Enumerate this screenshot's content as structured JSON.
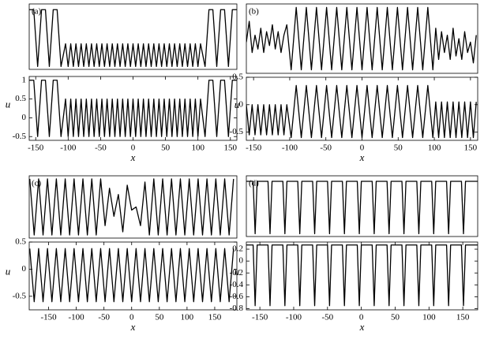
{
  "chart_data": [
    {
      "type": "line",
      "label": "(a)",
      "color": "#000000",
      "x": [
        -160,
        -153,
        -147,
        -141,
        -135,
        -129,
        -123,
        -117,
        -111,
        -104,
        -100,
        -96,
        -92,
        -88,
        -84,
        -80,
        -76,
        -72,
        -68,
        -64,
        -60,
        -56,
        -52,
        -48,
        -44,
        -40,
        -36,
        -32,
        -28,
        -24,
        -20,
        -16,
        -12,
        -8,
        -4,
        0,
        4,
        8,
        12,
        16,
        20,
        24,
        28,
        32,
        36,
        40,
        44,
        48,
        52,
        56,
        60,
        64,
        68,
        72,
        76,
        80,
        84,
        88,
        92,
        96,
        100,
        104,
        111,
        117,
        123,
        129,
        135,
        141,
        147,
        153,
        160
      ],
      "values": [
        1,
        1,
        0,
        1,
        1,
        0,
        1,
        1,
        0,
        0.4,
        0,
        0.4,
        0,
        0.4,
        0,
        0.4,
        0,
        0.4,
        0,
        0.4,
        0,
        0.4,
        0,
        0.4,
        0,
        0.4,
        0,
        0.4,
        0,
        0.4,
        0,
        0.4,
        0,
        0.4,
        0,
        0.4,
        0,
        0.4,
        0,
        0.4,
        0,
        0.4,
        0,
        0.4,
        0,
        0.4,
        0,
        0.4,
        0,
        0.4,
        0,
        0.4,
        0,
        0.4,
        0,
        0.4,
        0,
        0.4,
        0,
        0.4,
        0,
        0.4,
        0,
        1,
        1,
        0,
        1,
        1,
        0,
        1,
        1
      ],
      "xlim": [
        -160,
        160
      ],
      "ylim": [
        -0.05,
        1.1
      ]
    },
    {
      "type": "line",
      "color": "#000000",
      "xlabel": "x",
      "ylabel": "u",
      "x": [
        -160,
        -153,
        -147,
        -141,
        -135,
        -129,
        -123,
        -117,
        -111,
        -104,
        -100,
        -96,
        -92,
        -88,
        -84,
        -80,
        -76,
        -72,
        -68,
        -64,
        -60,
        -56,
        -52,
        -48,
        -44,
        -40,
        -36,
        -32,
        -28,
        -24,
        -20,
        -16,
        -12,
        -8,
        -4,
        0,
        4,
        8,
        12,
        16,
        20,
        24,
        28,
        32,
        36,
        40,
        44,
        48,
        52,
        56,
        60,
        64,
        68,
        72,
        76,
        80,
        84,
        88,
        92,
        96,
        100,
        104,
        111,
        117,
        123,
        129,
        135,
        141,
        147,
        153,
        160
      ],
      "values": [
        1,
        1,
        -0.5,
        1,
        1,
        -0.5,
        1,
        1,
        -0.5,
        0.5,
        -0.5,
        0.5,
        -0.5,
        0.5,
        -0.5,
        0.5,
        -0.5,
        0.5,
        -0.5,
        0.5,
        -0.5,
        0.5,
        -0.5,
        0.5,
        -0.5,
        0.5,
        -0.5,
        0.5,
        -0.5,
        0.5,
        -0.5,
        0.5,
        -0.5,
        0.5,
        -0.5,
        0.5,
        -0.5,
        0.5,
        -0.5,
        0.5,
        -0.5,
        0.5,
        -0.5,
        0.5,
        -0.5,
        0.5,
        -0.5,
        0.5,
        -0.5,
        0.5,
        -0.5,
        0.5,
        -0.5,
        0.5,
        -0.5,
        0.5,
        -0.5,
        0.5,
        -0.5,
        0.5,
        -0.5,
        0.5,
        -0.5,
        1,
        1,
        -0.5,
        1,
        1,
        -0.5,
        1,
        1
      ],
      "xlim": [
        -160,
        160
      ],
      "ylim": [
        -0.6,
        1.1
      ],
      "xticks": [
        -150,
        -100,
        -50,
        0,
        50,
        100,
        150
      ],
      "yticks": [
        -0.5,
        0,
        0.5,
        1
      ]
    },
    {
      "type": "line",
      "label": "(b)",
      "color": "#000000",
      "x": [
        -160,
        -156,
        -152,
        -148,
        -144,
        -140,
        -136,
        -132,
        -128,
        -124,
        -120,
        -116,
        -112,
        -108,
        -104,
        -98,
        -91,
        -84,
        -77,
        -70,
        -63,
        -56,
        -49,
        -42,
        -35,
        -28,
        -21,
        -14,
        -7,
        0,
        7,
        14,
        21,
        28,
        35,
        42,
        49,
        56,
        63,
        70,
        77,
        84,
        91,
        98,
        102,
        106,
        110,
        114,
        118,
        122,
        126,
        130,
        134,
        138,
        142,
        146,
        150,
        154,
        158
      ],
      "values": [
        0.45,
        0.75,
        0.3,
        0.55,
        0.35,
        0.65,
        0.3,
        0.6,
        0.4,
        0.7,
        0.35,
        0.6,
        0.3,
        0.55,
        0.7,
        0.05,
        0.95,
        0.05,
        0.95,
        0.05,
        0.95,
        0.05,
        0.95,
        0.05,
        0.95,
        0.05,
        0.95,
        0.05,
        0.95,
        0.05,
        0.95,
        0.05,
        0.95,
        0.05,
        0.95,
        0.05,
        0.95,
        0.05,
        0.95,
        0.05,
        0.95,
        0.05,
        0.95,
        0.05,
        0.65,
        0.2,
        0.6,
        0.3,
        0.55,
        0.2,
        0.65,
        0.25,
        0.5,
        0.2,
        0.6,
        0.3,
        0.45,
        0.15,
        0.55
      ],
      "xlim": [
        -160,
        160
      ],
      "ylim": [
        0,
        1
      ]
    },
    {
      "type": "line",
      "color": "#000000",
      "xlabel": "x",
      "ylabel": "u",
      "x": [
        -160,
        -156,
        -152,
        -148,
        -144,
        -140,
        -136,
        -132,
        -128,
        -124,
        -120,
        -116,
        -112,
        -108,
        -104,
        -98,
        -91,
        -84,
        -77,
        -70,
        -63,
        -56,
        -49,
        -42,
        -35,
        -28,
        -21,
        -14,
        -7,
        0,
        7,
        14,
        21,
        28,
        35,
        42,
        49,
        56,
        63,
        70,
        77,
        84,
        91,
        98,
        102,
        106,
        110,
        114,
        118,
        122,
        126,
        130,
        134,
        138,
        142,
        146,
        150,
        154,
        158
      ],
      "values": [
        0,
        -0.55,
        0,
        -0.55,
        0,
        -0.55,
        0,
        -0.55,
        0,
        -0.55,
        0,
        -0.55,
        0,
        -0.55,
        0,
        -0.6,
        0.35,
        -0.6,
        0.35,
        -0.6,
        0.35,
        -0.6,
        0.35,
        -0.6,
        0.35,
        -0.6,
        0.35,
        -0.6,
        0.35,
        -0.6,
        0.35,
        -0.6,
        0.35,
        -0.6,
        0.35,
        -0.6,
        0.35,
        -0.6,
        0.35,
        -0.6,
        0.35,
        -0.6,
        0.35,
        -0.6,
        0.05,
        -0.6,
        0.05,
        -0.6,
        0.05,
        -0.6,
        0.05,
        -0.6,
        0.05,
        -0.6,
        0.05,
        -0.6,
        0.05,
        -0.6,
        0.05
      ],
      "xlim": [
        -160,
        160
      ],
      "ylim": [
        -0.65,
        0.5
      ],
      "xticks": [
        -150,
        -100,
        -50,
        0,
        50,
        100,
        150
      ],
      "yticks": [
        -0.5,
        0,
        0.5
      ]
    },
    {
      "type": "line",
      "label": "(c)",
      "color": "#000000",
      "x": [
        -184,
        -176,
        -168,
        -160,
        -152,
        -144,
        -136,
        -128,
        -120,
        -112,
        -104,
        -96,
        -88,
        -80,
        -72,
        -64,
        -56,
        -48,
        -40,
        -32,
        -24,
        -16,
        -8,
        0,
        8,
        16,
        24,
        32,
        40,
        48,
        56,
        64,
        72,
        80,
        88,
        96,
        104,
        112,
        120,
        128,
        136,
        144,
        152,
        160,
        168,
        176,
        184
      ],
      "values": [
        0.95,
        0.05,
        0.95,
        0.05,
        0.95,
        0.05,
        0.95,
        0.05,
        0.95,
        0.05,
        0.95,
        0.05,
        0.95,
        0.05,
        0.95,
        0.05,
        0.95,
        0.2,
        0.8,
        0.35,
        0.7,
        0.1,
        0.85,
        0.45,
        0.5,
        0.2,
        0.9,
        0.05,
        0.95,
        0.05,
        0.95,
        0.05,
        0.95,
        0.05,
        0.95,
        0.05,
        0.95,
        0.05,
        0.95,
        0.05,
        0.95,
        0.05,
        0.95,
        0.05,
        0.95,
        0.05,
        0.95
      ],
      "xlim": [
        -185,
        190
      ],
      "ylim": [
        0,
        1
      ]
    },
    {
      "type": "line",
      "color": "#000000",
      "xlabel": "x",
      "ylabel": "u",
      "x": [
        -184,
        -176,
        -168,
        -160,
        -152,
        -144,
        -136,
        -128,
        -120,
        -112,
        -104,
        -96,
        -88,
        -80,
        -72,
        -64,
        -56,
        -48,
        -40,
        -32,
        -24,
        -16,
        -8,
        0,
        8,
        16,
        24,
        32,
        40,
        48,
        56,
        64,
        72,
        80,
        88,
        96,
        104,
        112,
        120,
        128,
        136,
        144,
        152,
        160,
        168,
        176,
        184
      ],
      "values": [
        0.38,
        -0.6,
        0.38,
        -0.6,
        0.38,
        -0.6,
        0.38,
        -0.6,
        0.38,
        -0.6,
        0.38,
        -0.6,
        0.38,
        -0.6,
        0.38,
        -0.6,
        0.38,
        -0.6,
        0.38,
        -0.6,
        0.38,
        -0.6,
        0.38,
        -0.6,
        0.38,
        -0.6,
        0.38,
        -0.6,
        0.38,
        -0.6,
        0.38,
        -0.6,
        0.38,
        -0.6,
        0.38,
        -0.6,
        0.38,
        -0.6,
        0.38,
        -0.6,
        0.38,
        -0.6,
        0.38,
        -0.6,
        0.38,
        -0.6,
        0.38
      ],
      "xlim": [
        -185,
        190
      ],
      "ylim": [
        -0.75,
        0.5
      ],
      "xticks": [
        -150,
        -100,
        -50,
        0,
        50,
        100,
        150
      ],
      "yticks": [
        -0.5,
        0,
        0.5
      ]
    },
    {
      "type": "line",
      "label": "(d)",
      "color": "#000000",
      "x": [
        -170,
        -160,
        -157,
        -154,
        -138,
        -135,
        -132,
        -116,
        -113,
        -110,
        -94,
        -91,
        -88,
        -72,
        -69,
        -66,
        -50,
        -47,
        -44,
        -28,
        -25,
        -22,
        -6,
        -3,
        0,
        16,
        19,
        22,
        38,
        41,
        44,
        60,
        63,
        66,
        82,
        85,
        88,
        104,
        107,
        110,
        126,
        129,
        132,
        148,
        151,
        154,
        172
      ],
      "values": [
        0.95,
        0.95,
        0,
        0.95,
        0.95,
        0,
        0.95,
        0.95,
        0,
        0.95,
        0.95,
        0,
        0.95,
        0.95,
        0,
        0.95,
        0.95,
        0,
        0.95,
        0.95,
        0,
        0.95,
        0.95,
        0,
        0.95,
        0.95,
        0,
        0.95,
        0.95,
        0,
        0.95,
        0.95,
        0,
        0.95,
        0.95,
        0,
        0.95,
        0.95,
        0,
        0.95,
        0.95,
        0,
        0.95,
        0.95,
        0,
        0.95,
        0.95
      ],
      "xlim": [
        -170,
        172
      ],
      "ylim": [
        -0.05,
        1.05
      ]
    },
    {
      "type": "line",
      "color": "#000000",
      "xlabel": "x",
      "ylabel": "u",
      "x": [
        -170,
        -160,
        -157,
        -154,
        -138,
        -135,
        -132,
        -116,
        -113,
        -110,
        -94,
        -91,
        -88,
        -72,
        -69,
        -66,
        -50,
        -47,
        -44,
        -28,
        -25,
        -22,
        -6,
        -3,
        0,
        16,
        19,
        22,
        38,
        41,
        44,
        60,
        63,
        66,
        82,
        85,
        88,
        104,
        107,
        110,
        126,
        129,
        132,
        148,
        151,
        154,
        172
      ],
      "values": [
        0.27,
        0.27,
        -0.75,
        0.27,
        0.27,
        -0.75,
        0.27,
        0.27,
        -0.75,
        0.27,
        0.27,
        -0.75,
        0.27,
        0.27,
        -0.75,
        0.27,
        0.27,
        -0.75,
        0.27,
        0.27,
        -0.75,
        0.27,
        0.27,
        -0.75,
        0.27,
        0.27,
        -0.75,
        0.27,
        0.27,
        -0.75,
        0.27,
        0.27,
        -0.75,
        0.27,
        0.27,
        -0.75,
        0.27,
        0.27,
        -0.75,
        0.27,
        0.27,
        -0.75,
        0.27,
        0.27,
        -0.75,
        0.27,
        0.27
      ],
      "xlim": [
        -170,
        172
      ],
      "ylim": [
        -0.82,
        0.32
      ],
      "xticks": [
        -150,
        -100,
        -50,
        0,
        50,
        100,
        150
      ],
      "yticks": [
        -0.8,
        -0.6,
        -0.4,
        -0.2,
        0,
        0.2
      ]
    }
  ]
}
